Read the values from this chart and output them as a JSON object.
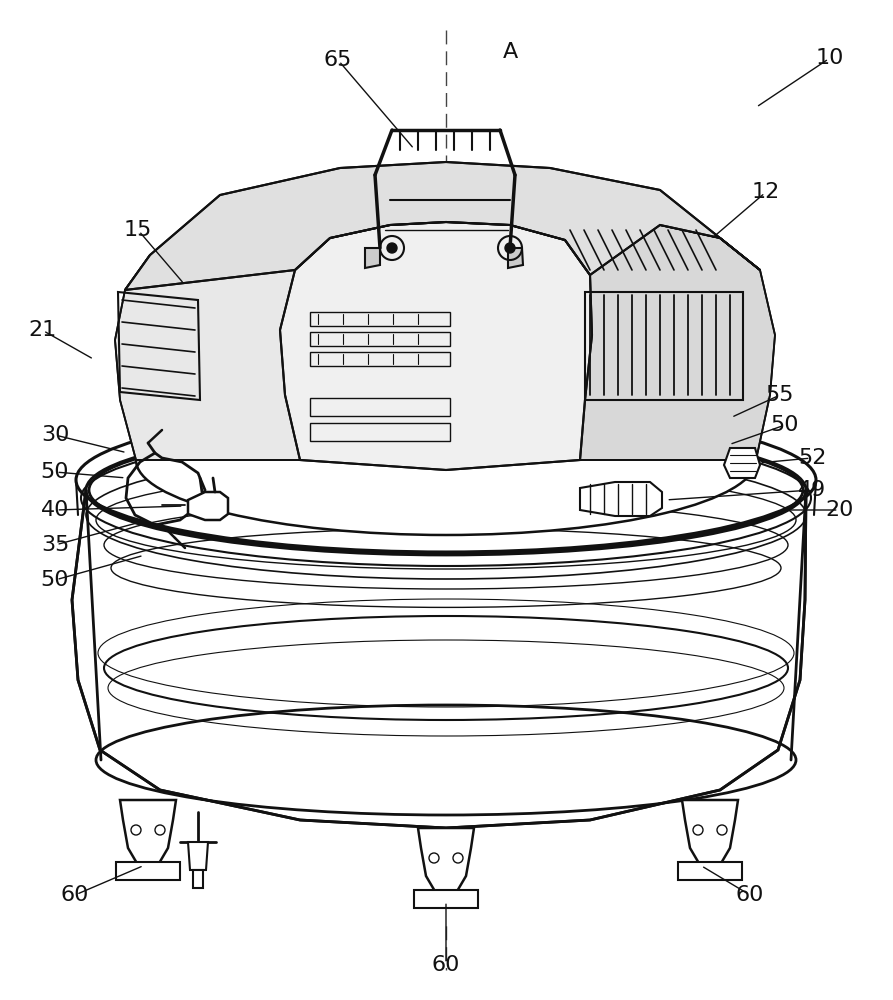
{
  "background_color": "#ffffff",
  "line_color": "#111111",
  "label_color": "#111111",
  "figsize": [
    8.93,
    10.0
  ],
  "dpi": 100,
  "labels": {
    "10": [
      830,
      58,
      755,
      115
    ],
    "65": [
      338,
      60,
      392,
      118
    ],
    "A": [
      510,
      52,
      null,
      null
    ],
    "12": [
      766,
      192,
      710,
      230
    ],
    "15": [
      138,
      230,
      185,
      270
    ],
    "21": [
      42,
      330,
      95,
      360
    ],
    "30": [
      55,
      435,
      130,
      455
    ],
    "50a": [
      55,
      475,
      130,
      490
    ],
    "40": [
      55,
      510,
      165,
      510
    ],
    "35": [
      55,
      545,
      150,
      545
    ],
    "50b": [
      55,
      580,
      148,
      575
    ],
    "20": [
      840,
      510,
      780,
      510
    ],
    "55": [
      780,
      395,
      725,
      415
    ],
    "50c": [
      785,
      420,
      730,
      440
    ],
    "52": [
      810,
      455,
      750,
      455
    ],
    "49": [
      810,
      488,
      740,
      488
    ],
    "60a": [
      75,
      895,
      130,
      870
    ],
    "60b": [
      750,
      895,
      700,
      870
    ],
    "60c": [
      446,
      965,
      446,
      935
    ]
  }
}
